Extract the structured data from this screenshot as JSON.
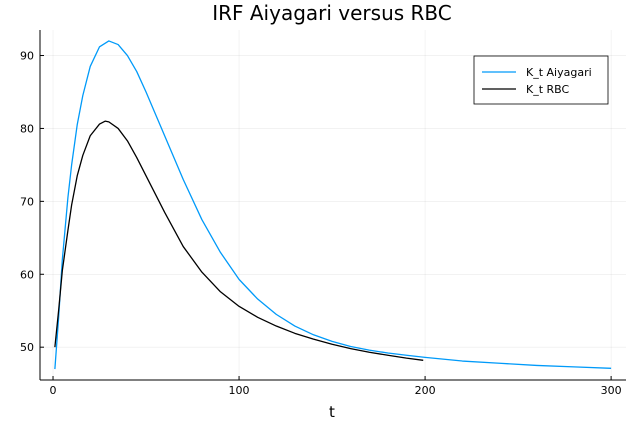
{
  "chart_data": {
    "type": "line",
    "title": "IRF Aiyagari versus RBC",
    "xlabel": "t",
    "ylabel": "",
    "xlim": [
      -7,
      308
    ],
    "ylim": [
      45.5,
      93.5
    ],
    "xticks": [
      0,
      100,
      200,
      300
    ],
    "yticks": [
      50,
      60,
      70,
      80,
      90
    ],
    "grid": true,
    "legend_position": "top-right",
    "series": [
      {
        "name": "K_t Aiyagari",
        "color": "#009af9",
        "x": [
          1,
          3,
          5,
          8,
          10,
          13,
          16,
          20,
          25,
          30,
          35,
          40,
          45,
          50,
          55,
          60,
          70,
          80,
          90,
          100,
          110,
          120,
          130,
          140,
          150,
          160,
          170,
          180,
          190,
          200,
          220,
          240,
          260,
          280,
          300
        ],
        "values": [
          47.0,
          54.0,
          62.0,
          70.5,
          75.0,
          80.5,
          84.5,
          88.5,
          91.2,
          92.0,
          91.5,
          90.0,
          87.8,
          85.0,
          82.0,
          79.0,
          73.0,
          67.5,
          63.0,
          59.3,
          56.6,
          54.5,
          52.9,
          51.7,
          50.8,
          50.1,
          49.6,
          49.2,
          48.9,
          48.6,
          48.1,
          47.8,
          47.5,
          47.3,
          47.1
        ]
      },
      {
        "name": "K_t RBC",
        "color": "#000000",
        "x": [
          1,
          3,
          5,
          8,
          10,
          13,
          16,
          20,
          25,
          28,
          30,
          35,
          40,
          45,
          50,
          55,
          60,
          70,
          80,
          90,
          100,
          110,
          120,
          130,
          140,
          150,
          160,
          170,
          180,
          190,
          199
        ],
        "values": [
          50.0,
          55.0,
          60.5,
          66.0,
          69.5,
          73.5,
          76.3,
          79.0,
          80.6,
          81.0,
          80.9,
          80.0,
          78.3,
          76.0,
          73.5,
          71.0,
          68.5,
          63.8,
          60.3,
          57.6,
          55.6,
          54.1,
          52.9,
          51.9,
          51.1,
          50.4,
          49.8,
          49.3,
          48.9,
          48.5,
          48.2
        ]
      }
    ]
  }
}
